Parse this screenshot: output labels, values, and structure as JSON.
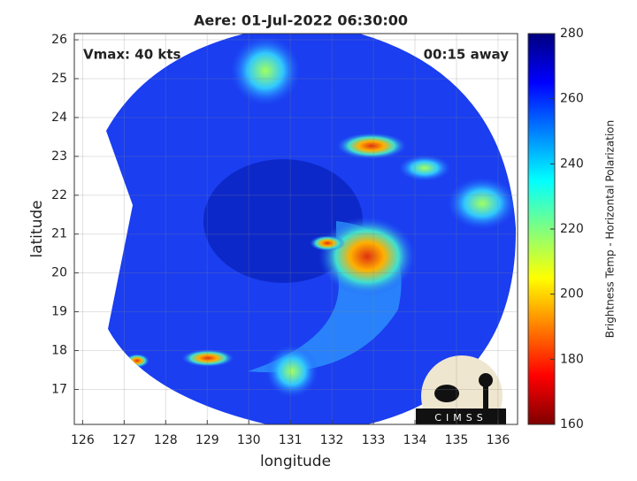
{
  "title": "Aere: 01-Jul-2022 06:30:00",
  "annotations": {
    "vmax": "Vmax: 40 kts",
    "time_away": "00:15 away"
  },
  "x_axis": {
    "label": "longitude",
    "lim": [
      125.8,
      136.47
    ],
    "ticks": [
      126,
      127,
      128,
      129,
      130,
      131,
      132,
      133,
      134,
      135,
      136
    ]
  },
  "y_axis": {
    "label": "latitude",
    "lim": [
      16.1,
      26.16
    ],
    "ticks": [
      17,
      18,
      19,
      20,
      21,
      22,
      23,
      24,
      25,
      26
    ]
  },
  "colorbar": {
    "label": "Brightness Temp - Horizontal Polarization",
    "lim": [
      160,
      280
    ],
    "ticks": [
      160,
      180,
      200,
      220,
      240,
      260,
      280
    ]
  },
  "logo": "CIMSS"
}
